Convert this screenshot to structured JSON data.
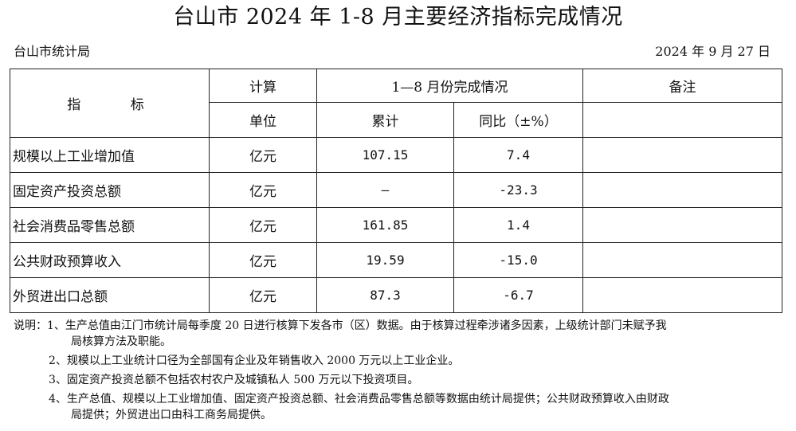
{
  "title": "台山市 2024 年 1-8 月主要经济指标完成情况",
  "agency": "台山市统计局",
  "date": "2024 年 9 月 27 日",
  "headers": {
    "indicator_a": "指",
    "indicator_b": "标",
    "unit_top": "计算",
    "unit_bottom": "单位",
    "completion": "1—8 月份完成情况",
    "cumulative": "累计",
    "yoy": "同比（±%）",
    "remarks": "备注"
  },
  "rows": [
    {
      "name": "规模以上工业增加值",
      "unit": "亿元",
      "cumulative": "107.15",
      "yoy": "7.4",
      "remark": ""
    },
    {
      "name": "固定资产投资总额",
      "unit": "亿元",
      "cumulative": "–",
      "yoy": "-23.3",
      "remark": ""
    },
    {
      "name": "社会消费品零售总额",
      "unit": "亿元",
      "cumulative": "161.85",
      "yoy": "1.4",
      "remark": ""
    },
    {
      "name": "公共财政预算收入",
      "unit": "亿元",
      "cumulative": "19.59",
      "yoy": "-15.0",
      "remark": ""
    },
    {
      "name": "外贸进出口总额",
      "unit": "亿元",
      "cumulative": "87.3",
      "yoy": "-6.7",
      "remark": ""
    }
  ],
  "notes": {
    "label": "说明：",
    "n1_line1": "1、生产总值由江门市统计局每季度 20 日进行核算下发各市（区）数据。由于核算过程牵涉诸多因素，上级统计部门未赋予我",
    "n1_line2": "局核算方法及职能。",
    "n2": "2、规模以上工业统计口径为全部国有企业及年销售收入 2000 万元以上工业企业。",
    "n3": "3、固定资产投资总额不包括农村农户及城镇私人 500 万元以下投资项目。",
    "n4_line1": "4、生产总值、规模以上工业增加值、固定资产投资总额、社会消费品零售总额等数据由统计局提供；公共财政预算收入由财政",
    "n4_line2": "局提供；外贸进出口由科工商务局提供。"
  }
}
